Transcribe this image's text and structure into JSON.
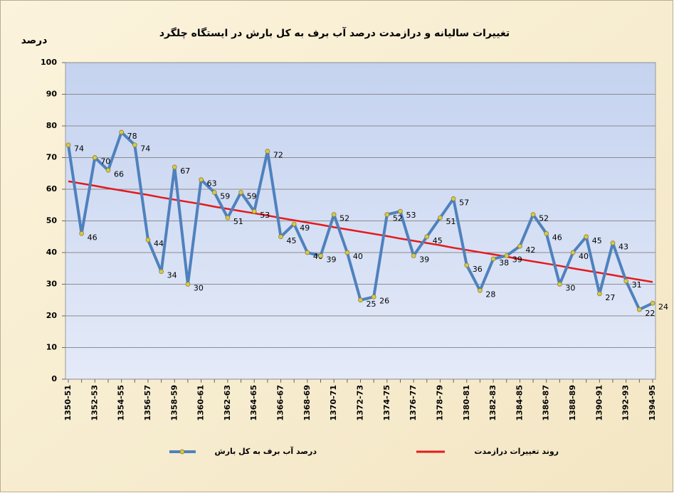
{
  "chart_data": {
    "type": "line",
    "title": "تغییرات سالیانه و درازمدت درصد آب برف به کل بارش در ایستگاه چلگرد",
    "y_label": "درصد",
    "categories": [
      "1350-51",
      null,
      "1352-53",
      null,
      "1354-55",
      null,
      "1356-57",
      null,
      "1358-59",
      null,
      "1360-61",
      null,
      "1362-63",
      null,
      "1364-65",
      null,
      "1366-67",
      null,
      "1368-69",
      null,
      "1370-71",
      null,
      "1372-73",
      null,
      "1374-75",
      null,
      "1376-77",
      null,
      "1378-79",
      null,
      "1380-81",
      null,
      "1382-83",
      null,
      "1384-85",
      null,
      "1386-87",
      null,
      "1388-89",
      null,
      "1390-91",
      null,
      "1392-93",
      null,
      "1394-95"
    ],
    "series": [
      {
        "name": "درصد آب برف به کل بارش",
        "color": "#4f81bd",
        "marker_color": "#d6c84c",
        "values": [
          74,
          46,
          70,
          66,
          78,
          74,
          44,
          34,
          67,
          30,
          63,
          59,
          51,
          59,
          53,
          72,
          45,
          49,
          40,
          39,
          52,
          40,
          25,
          26,
          52,
          53,
          39,
          45,
          51,
          57,
          36,
          28,
          38,
          39,
          42,
          52,
          46,
          30,
          40,
          45,
          27,
          43,
          31,
          22,
          24
        ]
      },
      {
        "name": "روند تغییرات درازمدت",
        "color": "#e31a1c",
        "values": [
          62.5,
          61.8,
          61.1,
          60.3,
          59.6,
          58.9,
          58.2,
          57.4,
          56.7,
          56.0,
          55.3,
          54.5,
          53.8,
          53.1,
          52.4,
          51.7,
          50.9,
          50.2,
          49.5,
          48.8,
          48.0,
          47.3,
          46.6,
          45.9,
          45.2,
          44.4,
          43.7,
          43.0,
          42.3,
          41.5,
          40.8,
          40.1,
          39.4,
          38.7,
          37.9,
          37.2,
          36.5,
          35.8,
          35.0,
          34.3,
          33.6,
          32.9,
          32.1,
          31.4,
          30.7
        ]
      }
    ],
    "ylim": [
      0,
      100
    ],
    "yticks": [
      0,
      10,
      20,
      30,
      40,
      50,
      60,
      70,
      80,
      90,
      100
    ],
    "grid": true
  }
}
